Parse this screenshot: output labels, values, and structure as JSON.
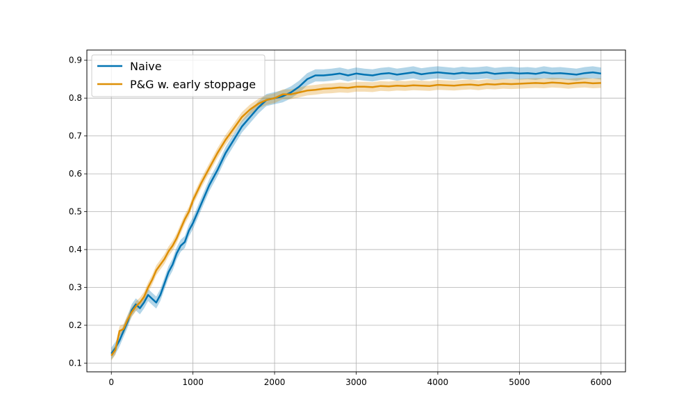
{
  "chart_data": {
    "type": "line",
    "title": "",
    "xlabel": "",
    "ylabel": "",
    "xlim": [
      -300,
      6300
    ],
    "ylim": [
      0.077,
      0.927
    ],
    "xticks": [
      0,
      1000,
      2000,
      3000,
      4000,
      5000,
      6000
    ],
    "xtick_labels": [
      "0",
      "1000",
      "2000",
      "3000",
      "4000",
      "5000",
      "6000"
    ],
    "yticks": [
      0.1,
      0.2,
      0.3,
      0.4,
      0.5,
      0.6,
      0.7,
      0.8,
      0.9
    ],
    "ytick_labels": [
      "0.1",
      "0.2",
      "0.3",
      "0.4",
      "0.5",
      "0.6",
      "0.7",
      "0.8",
      "0.9"
    ],
    "grid": true,
    "legend_position": "top-left",
    "series": [
      {
        "name": "Naive",
        "color": "#0173b2",
        "x": [
          0,
          50,
          100,
          150,
          200,
          250,
          300,
          350,
          400,
          450,
          500,
          550,
          600,
          650,
          700,
          750,
          800,
          850,
          900,
          950,
          1000,
          1100,
          1200,
          1300,
          1400,
          1500,
          1600,
          1700,
          1800,
          1900,
          2000,
          2100,
          2200,
          2300,
          2400,
          2500,
          2600,
          2700,
          2800,
          2900,
          3000,
          3100,
          3200,
          3300,
          3400,
          3500,
          3600,
          3700,
          3800,
          3900,
          4000,
          4100,
          4200,
          4300,
          4400,
          4500,
          4600,
          4700,
          4800,
          4900,
          5000,
          5100,
          5200,
          5300,
          5400,
          5500,
          5600,
          5700,
          5800,
          5900,
          6000
        ],
        "y": [
          0.125,
          0.14,
          0.16,
          0.185,
          0.21,
          0.24,
          0.255,
          0.245,
          0.26,
          0.28,
          0.27,
          0.26,
          0.28,
          0.31,
          0.34,
          0.36,
          0.39,
          0.41,
          0.42,
          0.45,
          0.47,
          0.52,
          0.57,
          0.61,
          0.655,
          0.69,
          0.725,
          0.75,
          0.775,
          0.795,
          0.8,
          0.805,
          0.815,
          0.83,
          0.85,
          0.86,
          0.86,
          0.862,
          0.865,
          0.86,
          0.865,
          0.862,
          0.86,
          0.864,
          0.866,
          0.862,
          0.865,
          0.868,
          0.863,
          0.866,
          0.868,
          0.866,
          0.864,
          0.867,
          0.865,
          0.866,
          0.868,
          0.864,
          0.866,
          0.867,
          0.865,
          0.866,
          0.864,
          0.868,
          0.865,
          0.866,
          0.864,
          0.862,
          0.866,
          0.868,
          0.865
        ],
        "band": 0.016
      },
      {
        "name": "P&G w. early stoppage",
        "color": "#de8f05",
        "x": [
          0,
          50,
          100,
          150,
          200,
          250,
          300,
          350,
          400,
          450,
          500,
          550,
          600,
          650,
          700,
          750,
          800,
          850,
          900,
          950,
          1000,
          1100,
          1200,
          1300,
          1400,
          1500,
          1600,
          1700,
          1800,
          1900,
          2000,
          2100,
          2200,
          2300,
          2400,
          2500,
          2600,
          2700,
          2800,
          2900,
          3000,
          3100,
          3200,
          3300,
          3400,
          3500,
          3600,
          3700,
          3800,
          3900,
          4000,
          4100,
          4200,
          4300,
          4400,
          4500,
          4600,
          4700,
          4800,
          4900,
          5000,
          5100,
          5200,
          5300,
          5400,
          5500,
          5600,
          5700,
          5800,
          5900,
          6000
        ],
        "y": [
          0.12,
          0.135,
          0.185,
          0.19,
          0.215,
          0.235,
          0.25,
          0.26,
          0.275,
          0.3,
          0.32,
          0.345,
          0.36,
          0.375,
          0.395,
          0.41,
          0.43,
          0.455,
          0.48,
          0.5,
          0.53,
          0.575,
          0.615,
          0.655,
          0.69,
          0.72,
          0.75,
          0.77,
          0.785,
          0.795,
          0.8,
          0.81,
          0.81,
          0.815,
          0.82,
          0.822,
          0.825,
          0.826,
          0.828,
          0.827,
          0.83,
          0.83,
          0.829,
          0.832,
          0.831,
          0.833,
          0.832,
          0.834,
          0.833,
          0.832,
          0.835,
          0.834,
          0.833,
          0.835,
          0.836,
          0.834,
          0.837,
          0.836,
          0.838,
          0.837,
          0.838,
          0.839,
          0.84,
          0.839,
          0.841,
          0.84,
          0.838,
          0.84,
          0.841,
          0.839,
          0.84
        ],
        "band": 0.013
      }
    ]
  }
}
